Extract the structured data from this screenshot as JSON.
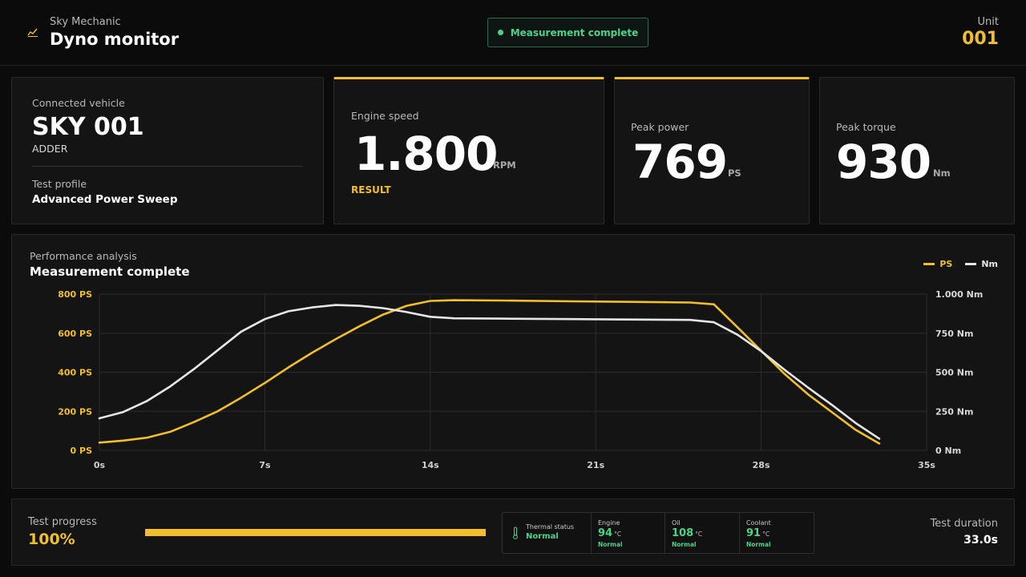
{
  "header": {
    "brand": "Sky Mechanic",
    "title": "Dyno monitor",
    "status": "Measurement complete",
    "unit_label": "Unit",
    "unit_value": "001",
    "logo_icon": "chart-line-icon"
  },
  "vehicle": {
    "label": "Connected vehicle",
    "name": "SKY 001",
    "model": "ADDER",
    "profile_label": "Test profile",
    "profile_value": "Advanced Power Sweep"
  },
  "engine_speed": {
    "label": "Engine speed",
    "value": "1.800",
    "unit": "RPM",
    "tag": "RESULT"
  },
  "peak_power": {
    "label": "Peak power",
    "value": "769",
    "unit": "PS"
  },
  "peak_torque": {
    "label": "Peak torque",
    "value": "930",
    "unit": "Nm"
  },
  "chart": {
    "subtitle": "Performance analysis",
    "title": "Measurement complete",
    "legend": [
      {
        "label": "PS",
        "color": "#f0bf2b"
      },
      {
        "label": "Nm",
        "color": "#e6e6e6"
      }
    ]
  },
  "chart_data": {
    "type": "line",
    "title": "Measurement complete",
    "xlabel": "",
    "x_ticks": [
      "0s",
      "7s",
      "14s",
      "21s",
      "28s",
      "35s"
    ],
    "xlim": [
      0,
      35
    ],
    "y_left": {
      "ticks": [
        "0 PS",
        "200 PS",
        "400 PS",
        "600 PS",
        "800 PS"
      ],
      "lim": [
        0,
        800
      ],
      "unit": "PS"
    },
    "y_right": {
      "ticks": [
        "0 Nm",
        "250 Nm",
        "500 Nm",
        "750 Nm",
        "1.000 Nm"
      ],
      "lim": [
        0,
        1000
      ],
      "unit": "Nm"
    },
    "grid": true,
    "legend_position": "top-right",
    "series": [
      {
        "name": "PS",
        "axis": "left",
        "color": "#f0bf2b",
        "x": [
          0,
          1,
          2,
          3,
          4,
          5,
          6,
          7,
          8,
          9,
          10,
          11,
          12,
          13,
          14,
          15,
          17,
          20,
          23,
          25,
          26,
          27,
          28,
          29,
          30,
          31,
          32,
          33
        ],
        "y": [
          40,
          50,
          65,
          95,
          145,
          200,
          270,
          345,
          425,
          500,
          570,
          635,
          695,
          740,
          765,
          769,
          767,
          763,
          760,
          757,
          748,
          630,
          510,
          390,
          285,
          195,
          105,
          35
        ]
      },
      {
        "name": "Nm",
        "axis": "right",
        "color": "#e6e6e6",
        "x": [
          0,
          1,
          2,
          3,
          4,
          5,
          6,
          7,
          8,
          9,
          10,
          11,
          12,
          13,
          14,
          15,
          17,
          20,
          23,
          25,
          26,
          27,
          28,
          29,
          30,
          31,
          32,
          33
        ],
        "y": [
          205,
          245,
          315,
          410,
          520,
          640,
          760,
          840,
          890,
          915,
          930,
          925,
          910,
          885,
          855,
          845,
          843,
          840,
          837,
          835,
          820,
          740,
          635,
          515,
          400,
          290,
          175,
          75
        ]
      }
    ]
  },
  "footer": {
    "progress_label": "Test progress",
    "progress_value": "100%",
    "progress_fraction": 1.0,
    "thermal": {
      "icon": "thermometer-icon",
      "title": "Thermal status",
      "state": "Normal",
      "items": [
        {
          "name": "Engine",
          "value": "94",
          "unit": "°C",
          "state": "Normal"
        },
        {
          "name": "Oil",
          "value": "108",
          "unit": "°C",
          "state": "Normal"
        },
        {
          "name": "Coolant",
          "value": "91",
          "unit": "°C",
          "state": "Normal"
        }
      ]
    },
    "duration_label": "Test duration",
    "duration_value": "33.0s"
  }
}
